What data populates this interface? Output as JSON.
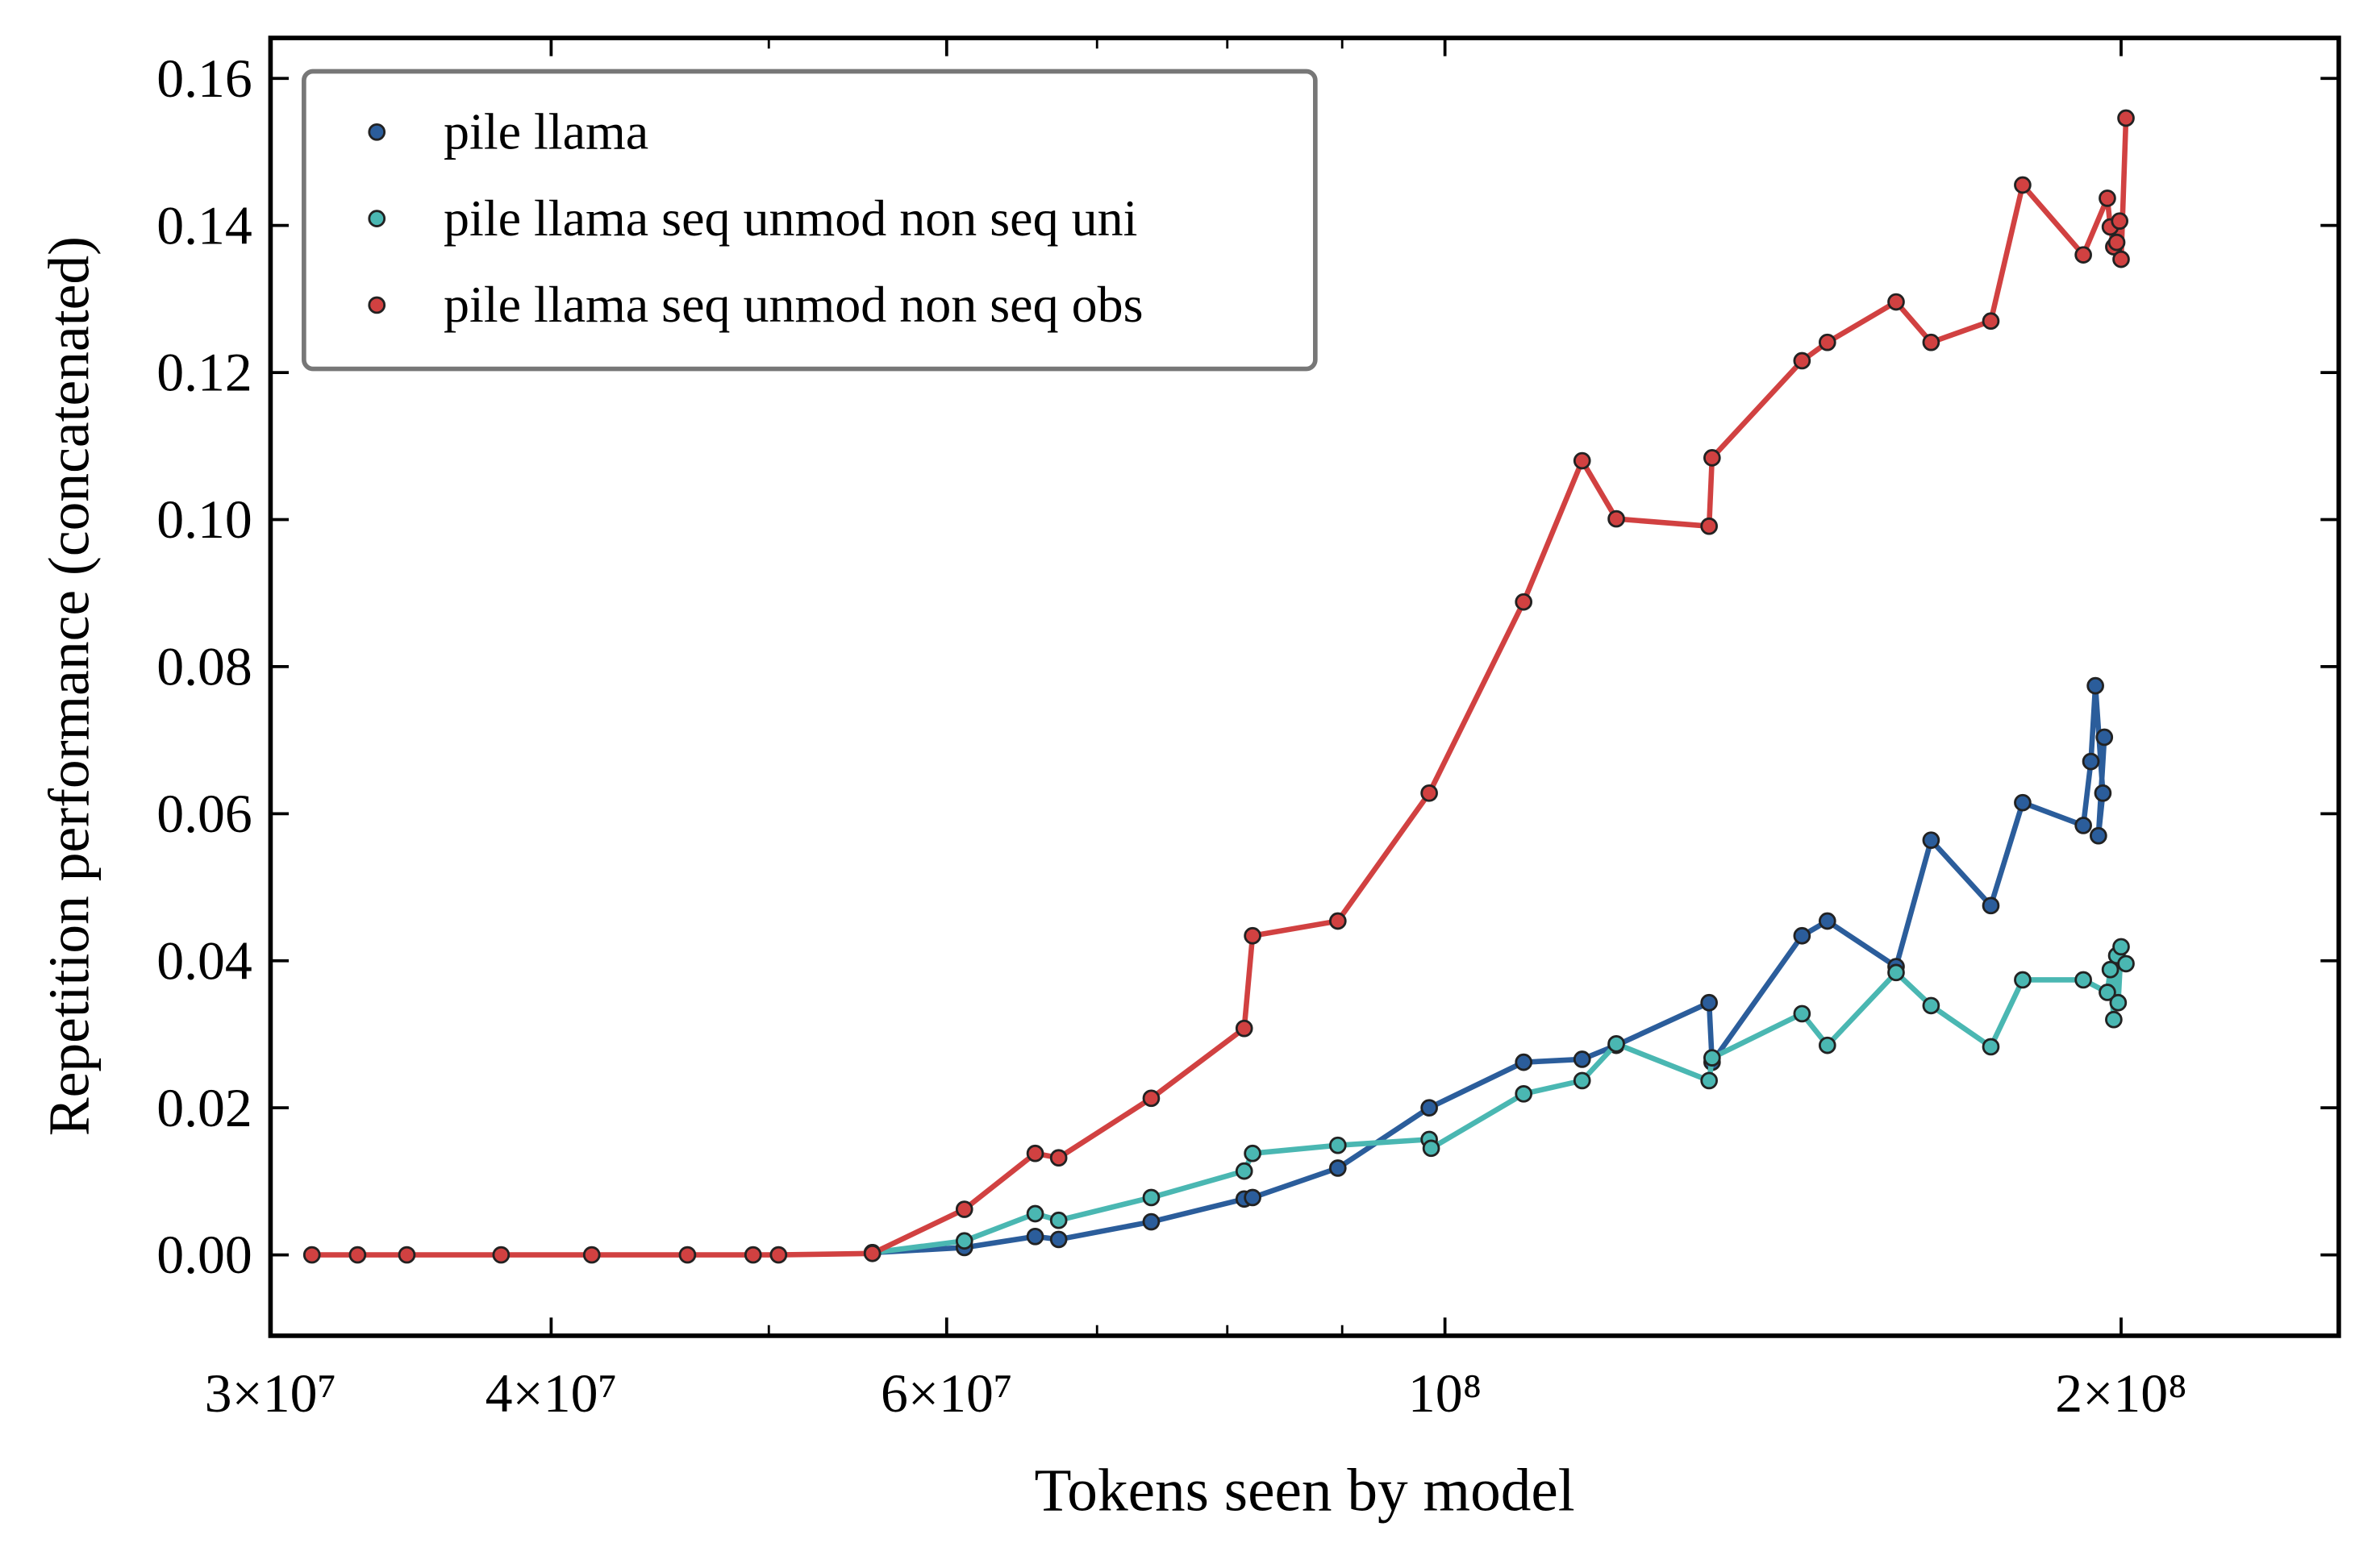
{
  "chart_data": {
    "type": "line",
    "xlabel": "Tokens seen by model",
    "ylabel": "Repetition performance (concatenated)",
    "xscale": "log",
    "xlim": [
      30000000,
      250000000
    ],
    "ylim": [
      -0.011,
      0.1655
    ],
    "xticks": [
      {
        "value": 30000000,
        "label": "3×10⁷"
      },
      {
        "value": 40000000,
        "label": "4×10⁷"
      },
      {
        "value": 60000000,
        "label": "6×10⁷"
      },
      {
        "value": 100000000,
        "label": "10⁸"
      },
      {
        "value": 200000000,
        "label": "2×10⁸"
      }
    ],
    "xminorticks": [
      50000000,
      70000000,
      80000000,
      90000000
    ],
    "yticks": [
      {
        "value": 0,
        "label": "0.00"
      },
      {
        "value": 0.02,
        "label": "0.02"
      },
      {
        "value": 0.04,
        "label": "0.04"
      },
      {
        "value": 0.06,
        "label": "0.06"
      },
      {
        "value": 0.08,
        "label": "0.08"
      },
      {
        "value": 0.1,
        "label": "0.10"
      },
      {
        "value": 0.12,
        "label": "0.12"
      },
      {
        "value": 0.14,
        "label": "0.14"
      },
      {
        "value": 0.16,
        "label": "0.16"
      }
    ],
    "legend": "upper left",
    "series": [
      {
        "name": "pile llama",
        "color": "#2b5d9b",
        "x": [
          55600000,
          61100000,
          65700000,
          67300000,
          74000000,
          81400000,
          82100000,
          89600000,
          98400000,
          108400000,
          115100000,
          119200000,
          131100000,
          131500000,
          144200000,
          148000000,
          158800000,
          164600000,
          175000000,
          180800000,
          192400000,
          193900000,
          194800000,
          196300000,
          195400000,
          196600000
        ],
        "values": [
          0.0003,
          0.001,
          0.0025,
          0.0021,
          0.0045,
          0.0076,
          0.0078,
          0.0118,
          0.02,
          0.0262,
          0.0266,
          0.0285,
          0.0343,
          0.0262,
          0.0434,
          0.0454,
          0.0392,
          0.0564,
          0.0475,
          0.0615,
          0.0584,
          0.0671,
          0.0774,
          0.0628,
          0.057,
          0.0704
        ]
      },
      {
        "name": "pile llama seq unmod non seq uni",
        "color": "#4ab7b2",
        "x": [
          55600000,
          61100000,
          65700000,
          67300000,
          74000000,
          81400000,
          82100000,
          89600000,
          98400000,
          98600000,
          108400000,
          115100000,
          119200000,
          131100000,
          131500000,
          144200000,
          148000000,
          158800000,
          164600000,
          175000000,
          180800000,
          192400000,
          197200000,
          197800000,
          198500000,
          199100000,
          199400000,
          200000000,
          201000000
        ],
        "values": [
          0.0003,
          0.0019,
          0.0056,
          0.0047,
          0.0078,
          0.0114,
          0.0138,
          0.0149,
          0.0157,
          0.0145,
          0.0219,
          0.0237,
          0.0287,
          0.0237,
          0.0268,
          0.0328,
          0.0285,
          0.0384,
          0.0339,
          0.0283,
          0.0374,
          0.0374,
          0.0357,
          0.0388,
          0.032,
          0.0407,
          0.0343,
          0.0419,
          0.0396
        ]
      },
      {
        "name": "pile llama seq unmod non seq obs",
        "color": "#d14141",
        "x": [
          31300000,
          32800000,
          34500000,
          38000000,
          41700000,
          46000000,
          49200000,
          50500000,
          55600000,
          61100000,
          65700000,
          67300000,
          74000000,
          81400000,
          82100000,
          89600000,
          98400000,
          108400000,
          115100000,
          119200000,
          131100000,
          131500000,
          144200000,
          148000000,
          158800000,
          164600000,
          175000000,
          180800000,
          192400000,
          197200000,
          197800000,
          198500000,
          199700000,
          199100000,
          200000000,
          201000000
        ],
        "values": [
          0,
          0,
          0,
          0,
          0,
          0,
          0,
          0,
          0.0002,
          0.0062,
          0.0138,
          0.0132,
          0.0213,
          0.0308,
          0.0434,
          0.0454,
          0.0628,
          0.0888,
          0.108,
          0.1001,
          0.0991,
          0.1084,
          0.1216,
          0.1241,
          0.1296,
          0.1241,
          0.127,
          0.1455,
          0.136,
          0.1437,
          0.1398,
          0.1371,
          0.1406,
          0.1377,
          0.1354,
          0.1546
        ]
      }
    ]
  }
}
